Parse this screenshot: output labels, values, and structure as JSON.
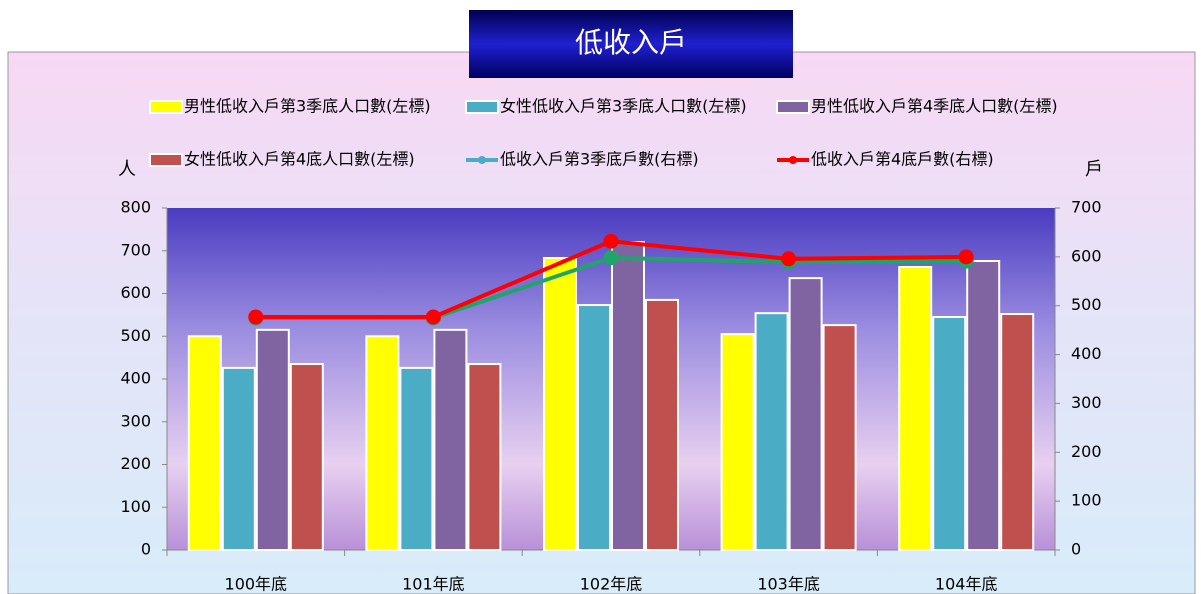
{
  "chart_data": {
    "type": "combo",
    "title": "低收入戶",
    "y_label": "人",
    "y2_label": "戶",
    "categories": [
      "100年底",
      "101年底",
      "102年底",
      "103年底",
      "104年底"
    ],
    "series": [
      {
        "name": "男性低收入戶第3季底人口數(左標)",
        "type": "bar",
        "color": "#ffff00",
        "values": [
          500,
          500,
          683,
          505,
          662
        ]
      },
      {
        "name": "女性低收入戶第3季底人口數(左標)",
        "type": "bar",
        "color": "#4bacc6",
        "values": [
          426,
          426,
          573,
          554,
          545
        ]
      },
      {
        "name": "男性低收入戶第4季底人口數(左標)",
        "type": "bar",
        "color": "#8064a2",
        "values": [
          515,
          515,
          720,
          636,
          676
        ]
      },
      {
        "name": "女性低收入戶第4底人口數(左標)",
        "type": "bar",
        "color": "#c0504d",
        "values": [
          435,
          435,
          585,
          526,
          552
        ]
      },
      {
        "name": "低收入戶第3季底戶數(右標)",
        "type": "line",
        "axis": "y2",
        "color": "#1fa56a",
        "legend_color": "#4bacc6",
        "values": [
          475,
          475,
          598,
          589,
          591
        ]
      },
      {
        "name": "低收入戶第4底戶數(右標)",
        "type": "line",
        "axis": "y2",
        "color": "#ff0000",
        "values": [
          477,
          477,
          632,
          596,
          600
        ]
      }
    ],
    "ylim": [
      0,
      800
    ],
    "yticks": [
      0,
      100,
      200,
      300,
      400,
      500,
      600,
      700,
      800
    ],
    "y2lim": [
      0,
      700
    ],
    "y2ticks": [
      0,
      100,
      200,
      300,
      400,
      500,
      600,
      700
    ]
  }
}
